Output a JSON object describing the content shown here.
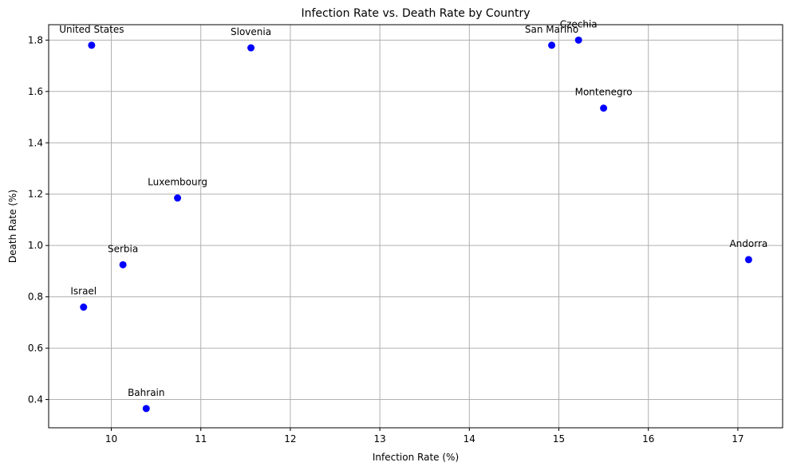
{
  "chart_data": {
    "type": "scatter",
    "title": "Infection Rate vs. Death Rate by Country",
    "xlabel": "Infection Rate (%)",
    "ylabel": "Death Rate (%)",
    "xlim": [
      9.3,
      17.5
    ],
    "ylim": [
      0.29,
      1.86
    ],
    "xticks": [
      10,
      11,
      12,
      13,
      14,
      15,
      16,
      17
    ],
    "yticks": [
      0.4,
      0.6,
      0.8,
      1.0,
      1.2,
      1.4,
      1.6,
      1.8
    ],
    "ytick_labels": [
      "0.4",
      "0.6",
      "0.8",
      "1.0",
      "1.2",
      "1.4",
      "1.6",
      "1.8"
    ],
    "grid": true,
    "marker_color": "#0000ff",
    "points": [
      {
        "label": "United States",
        "x": 9.78,
        "y": 1.78
      },
      {
        "label": "Slovenia",
        "x": 11.56,
        "y": 1.77
      },
      {
        "label": "San Marino",
        "x": 14.92,
        "y": 1.78
      },
      {
        "label": "Czechia",
        "x": 15.22,
        "y": 1.8
      },
      {
        "label": "Montenegro",
        "x": 15.5,
        "y": 1.535
      },
      {
        "label": "Luxembourg",
        "x": 10.74,
        "y": 1.185
      },
      {
        "label": "Serbia",
        "x": 10.13,
        "y": 0.925
      },
      {
        "label": "Andorra",
        "x": 17.12,
        "y": 0.945
      },
      {
        "label": "Israel",
        "x": 9.69,
        "y": 0.76
      },
      {
        "label": "Bahrain",
        "x": 10.39,
        "y": 0.365
      }
    ]
  }
}
